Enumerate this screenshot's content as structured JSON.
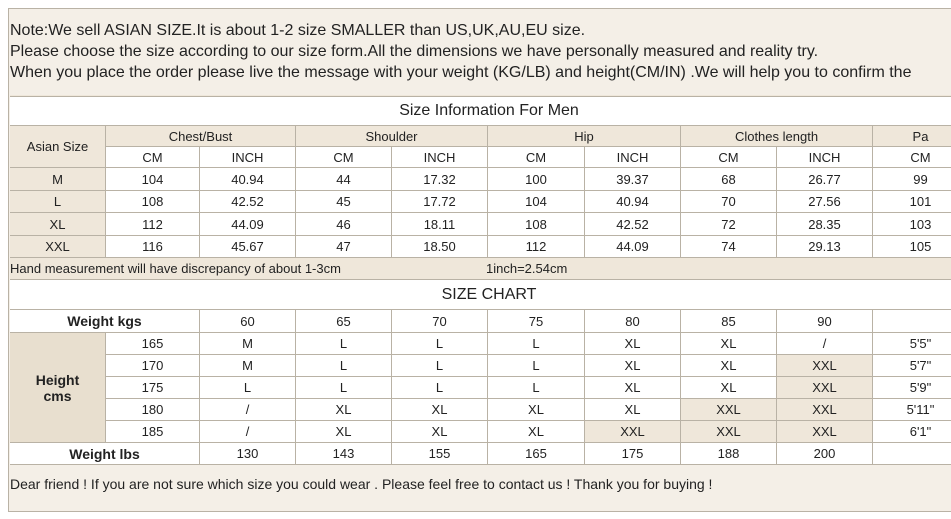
{
  "notes": [
    "Note:We sell ASIAN SIZE.It is about 1-2 size SMALLER than US,UK,AU,EU size.",
    "Please choose the size according to our size form.All the dimensions we have personally measured and reality try.",
    "When you place the order please live the message with your weight (KG/LB) and height(CM/IN) .We will help you to confirm the"
  ],
  "size_info": {
    "title": "Size Information For Men",
    "asian_size": "Asian Size",
    "groups": [
      "Chest/Bust",
      "Shoulder",
      "Hip",
      "Clothes length",
      "Pa"
    ],
    "units": [
      "CM",
      "INCH",
      "CM",
      "INCH",
      "CM",
      "INCH",
      "CM",
      "INCH",
      "CM"
    ],
    "rows": [
      [
        "M",
        "104",
        "40.94",
        "44",
        "17.32",
        "100",
        "39.37",
        "68",
        "26.77",
        "99"
      ],
      [
        "L",
        "108",
        "42.52",
        "45",
        "17.72",
        "104",
        "40.94",
        "70",
        "27.56",
        "101"
      ],
      [
        "XL",
        "112",
        "44.09",
        "46",
        "18.11",
        "108",
        "42.52",
        "72",
        "28.35",
        "103"
      ],
      [
        "XXL",
        "116",
        "45.67",
        "47",
        "18.50",
        "112",
        "44.09",
        "74",
        "29.13",
        "105"
      ]
    ]
  },
  "remarks": [
    "Hand measurement will have discrepancy of about 1-3cm",
    "1inch=2.54cm"
  ],
  "size_chart": {
    "title": "SIZE CHART",
    "weight_kgs_label": "Weight  kgs",
    "weights_kg": [
      "60",
      "65",
      "70",
      "75",
      "80",
      "85",
      "90"
    ],
    "height_label": "Height cms",
    "rows": [
      {
        "height": "165",
        "sizes": [
          "M",
          "L",
          "L",
          "L",
          "XL",
          "XL",
          "/"
        ],
        "feet": "5'5\""
      },
      {
        "height": "170",
        "sizes": [
          "M",
          "L",
          "L",
          "L",
          "XL",
          "XL",
          "XXL"
        ],
        "feet": "5'7\""
      },
      {
        "height": "175",
        "sizes": [
          "L",
          "L",
          "L",
          "L",
          "XL",
          "XL",
          "XXL"
        ],
        "feet": "5'9\""
      },
      {
        "height": "180",
        "sizes": [
          "/",
          "XL",
          "XL",
          "XL",
          "XL",
          "XXL",
          "XXL"
        ],
        "feet": "5'11\""
      },
      {
        "height": "185",
        "sizes": [
          "/",
          "XL",
          "XL",
          "XL",
          "XXL",
          "XXL",
          "XXL"
        ],
        "feet": "6'1\""
      }
    ],
    "weight_lbs_label": "Weight lbs",
    "weights_lbs": [
      "130",
      "143",
      "155",
      "165",
      "175",
      "188",
      "200"
    ]
  },
  "footer": "Dear friend ! If you are not sure which size you could wear . Please feel free to contact us ! Thank you for buying !"
}
